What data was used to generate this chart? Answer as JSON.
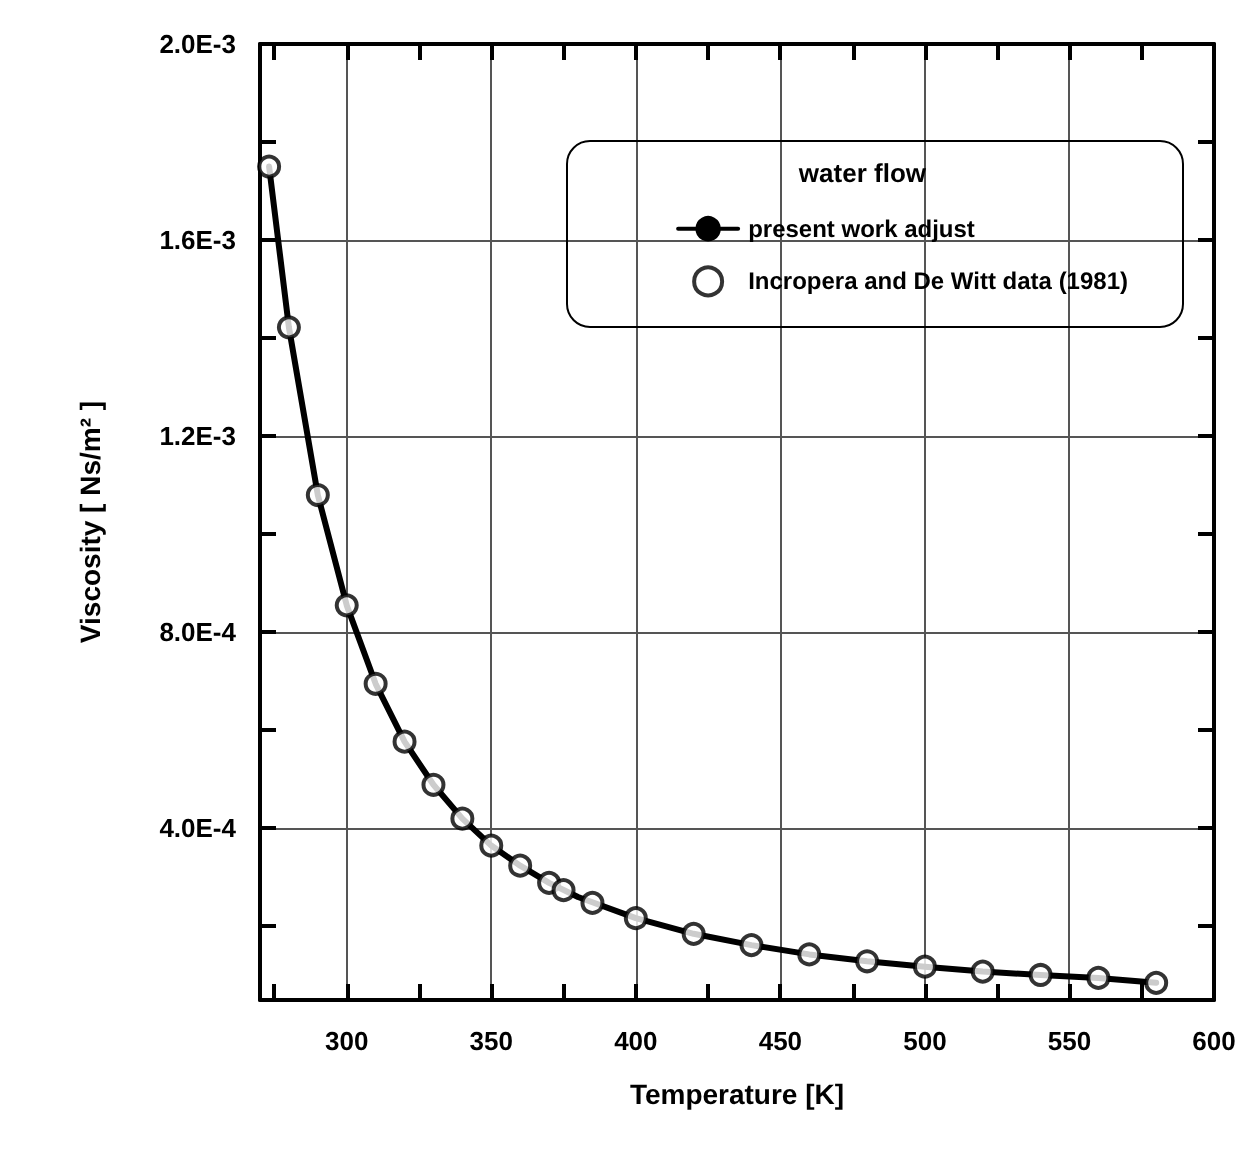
{
  "chart_data": {
    "type": "scatter",
    "xlabel": "Temperature [K]",
    "ylabel": "Viscosity [ Ns/m² ]",
    "legend_title": "water flow",
    "xlim": [
      270,
      600
    ],
    "xticks": [
      {
        "value": 275,
        "label": null
      },
      300,
      {
        "value": 325,
        "label": null
      },
      350,
      {
        "value": 375,
        "label": null
      },
      400,
      {
        "value": 425,
        "label": null
      },
      450,
      {
        "value": 475,
        "label": null
      },
      500,
      {
        "value": 525,
        "label": null
      },
      550,
      {
        "value": 575,
        "label": null
      },
      600
    ],
    "ylim": [
      5e-05,
      0.002
    ],
    "yticks": [
      {
        "value": 0.0002,
        "label": null
      },
      {
        "value": 0.0004,
        "label": "4.0E-4"
      },
      {
        "value": 0.0006,
        "label": null
      },
      {
        "value": 0.0008,
        "label": "8.0E-4"
      },
      {
        "value": 0.001,
        "label": null
      },
      {
        "value": 0.0012,
        "label": "1.2E-3"
      },
      {
        "value": 0.0014,
        "label": null
      },
      {
        "value": 0.0016,
        "label": "1.6E-3"
      },
      {
        "value": 0.0018,
        "label": null
      },
      {
        "value": 0.002,
        "label": "2.0E-3"
      }
    ],
    "grid": true,
    "legend": "top right",
    "series": [
      {
        "name": "present work adjust",
        "type": "line",
        "color": "#000000",
        "marker": "none",
        "line_style": "solid",
        "x": [
          273.15,
          280,
          290,
          300,
          310,
          320,
          330,
          340,
          350,
          360,
          370,
          380,
          400,
          420,
          440,
          460,
          480,
          500,
          520,
          540,
          560,
          580
        ],
        "values": [
          0.00175,
          0.001422,
          0.00108,
          0.000855,
          0.000695,
          0.000577,
          0.000489,
          0.00042,
          0.000365,
          0.000324,
          0.000289,
          0.00026,
          0.000217,
          0.000185,
          0.000162,
          0.000143,
          0.000129,
          0.000118,
          0.000108,
          0.000101,
          9.5e-05,
          8.5e-05
        ]
      },
      {
        "name": "Incropera and De Witt data (1981)",
        "color": "#000000",
        "marker": "circle",
        "x": [
          273.15,
          280,
          290,
          300,
          310,
          320,
          330,
          340,
          350,
          360,
          370,
          375,
          385,
          400,
          420,
          440,
          460,
          480,
          500,
          520,
          540,
          560,
          580
        ],
        "values": [
          0.00175,
          0.001422,
          0.00108,
          0.000855,
          0.000695,
          0.000577,
          0.000489,
          0.00042,
          0.000365,
          0.000324,
          0.000289,
          0.000274,
          0.000248,
          0.000217,
          0.000185,
          0.000162,
          0.000143,
          0.000129,
          0.000118,
          0.000108,
          0.000101,
          9.5e-05,
          8.5e-05
        ]
      }
    ]
  }
}
